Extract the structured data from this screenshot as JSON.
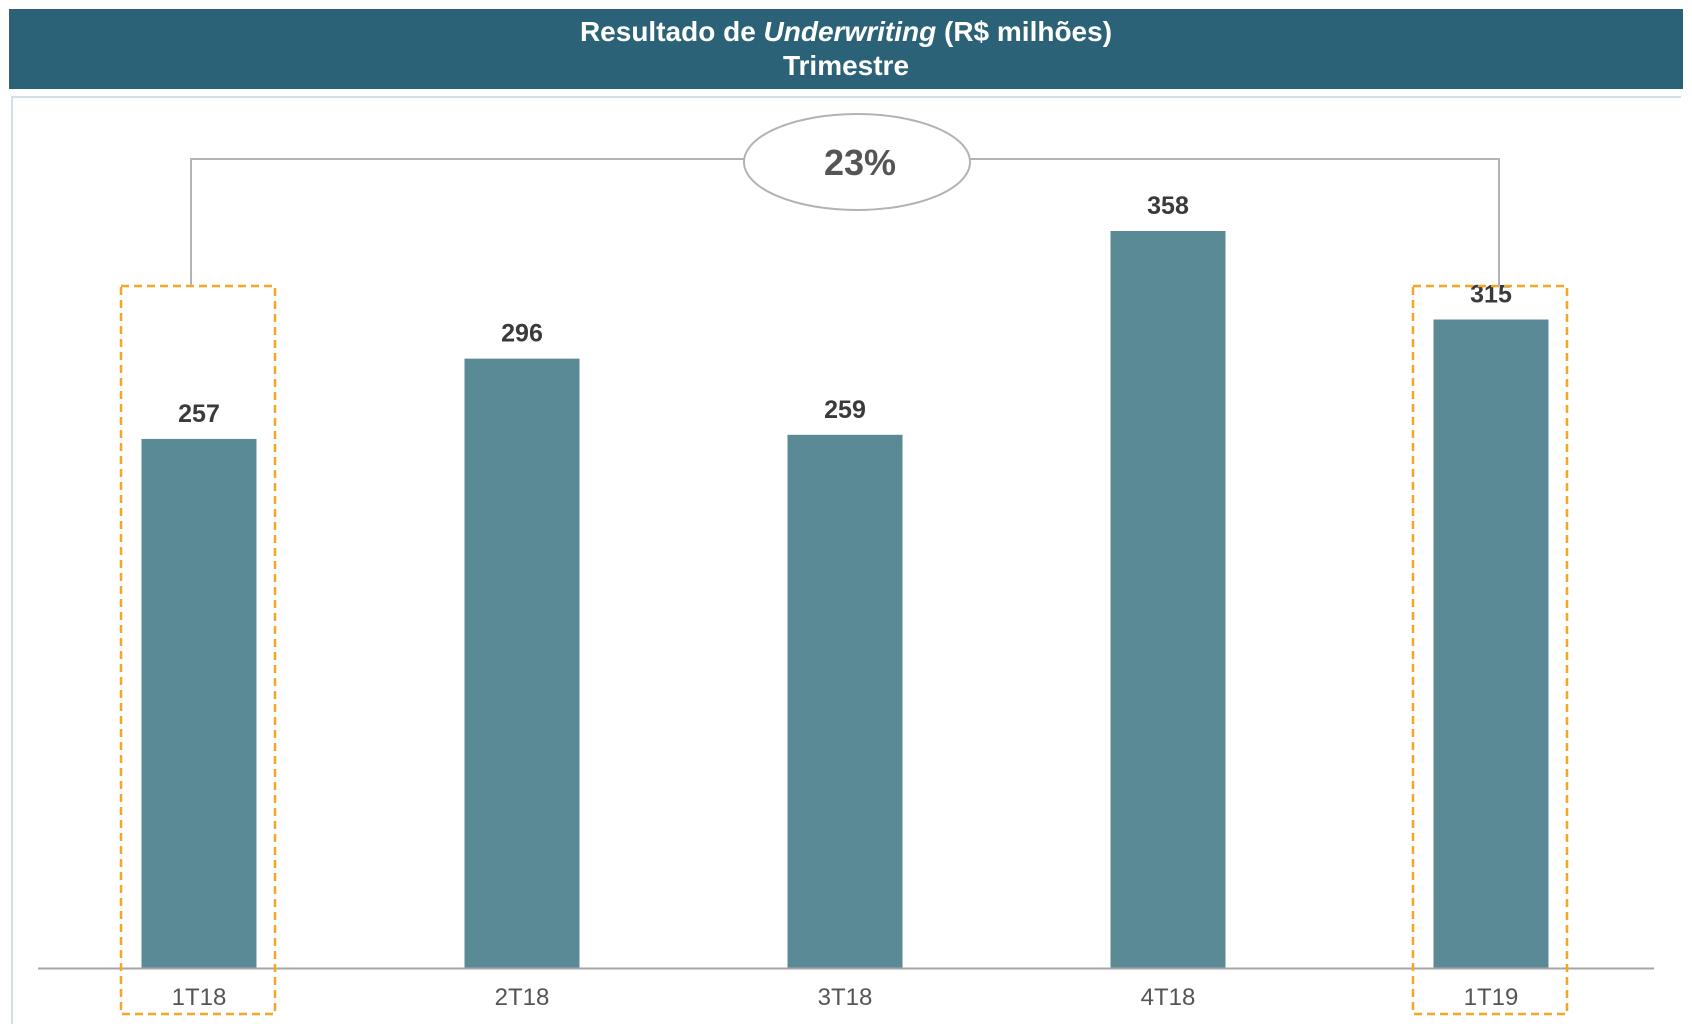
{
  "header": {
    "title_prefix": "Resultado de ",
    "title_italic": "Underwriting",
    "title_suffix": " (R$ milhões)",
    "subtitle": "Trimestre"
  },
  "chart_data": {
    "type": "bar",
    "categories": [
      "1T18",
      "2T18",
      "3T18",
      "4T18",
      "1T19"
    ],
    "values": [
      257,
      296,
      259,
      358,
      315
    ],
    "ylim": [
      0,
      370
    ],
    "grid": false,
    "highlighted": [
      "1T18",
      "1T19"
    ],
    "growth_label": "23%",
    "colors": {
      "bar": "#5a8a95",
      "highlight": "#f5a623",
      "axis": "#a6a6a6",
      "header": "#2b6277"
    }
  }
}
